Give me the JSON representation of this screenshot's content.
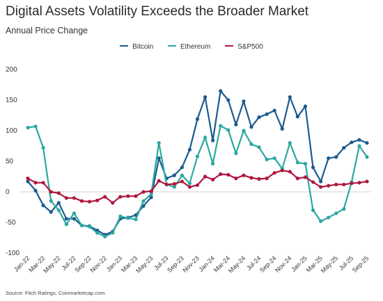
{
  "title": "Digital Assets Volatility Exceeds the Broader Market",
  "subtitle": "Annual Price Change",
  "source": "Source: Fitch Ratings, Coinmarketcap.com.",
  "chart_data": {
    "type": "line",
    "x": [
      "Jan-22",
      "Feb-22",
      "Mar-22",
      "Apr-22",
      "May-22",
      "Jun-22",
      "Jul-22",
      "Aug-22",
      "Sep-22",
      "Oct-22",
      "Nov-22",
      "Dec-22",
      "Jan-23",
      "Feb-23",
      "Mar-23",
      "Apr-23",
      "May-23",
      "Jun-23",
      "Jul-23",
      "Aug-23",
      "Sep-23",
      "Oct-23",
      "Nov-23",
      "Dec-23",
      "Jan-24",
      "Feb-24",
      "Mar-24",
      "Apr-24",
      "May-24",
      "Jun-24",
      "Jul-24",
      "Aug-24",
      "Sep-24",
      "Oct-24",
      "Nov-24",
      "Dec-24",
      "Jan-25",
      "Feb-25",
      "Mar-25",
      "Apr-25",
      "May-25",
      "Jun-25",
      "Jul-25",
      "Aug-25",
      "Sep-25"
    ],
    "x_tick_labels": [
      "Jan-22",
      "Mar-22",
      "May-22",
      "Jul-22",
      "Sep-22",
      "Nov-22",
      "Jan-23",
      "Mar-23",
      "May-23",
      "Jul-23",
      "Sep-23",
      "Nov-23",
      "Jan-24",
      "Mar-24",
      "May-24",
      "Jul-24",
      "Sep-24",
      "Nov-24",
      "Jan-25",
      "Mar-25",
      "May-25",
      "Jul-25",
      "Sep-25"
    ],
    "y_tick_labels": [
      "200",
      "150",
      "100",
      "50",
      "0",
      "-50",
      "-100"
    ],
    "y_ticks": [
      200,
      150,
      100,
      50,
      0,
      -50,
      -100
    ],
    "ylim": [
      -100,
      200
    ],
    "grid": false,
    "legend_position": "top-center",
    "series": [
      {
        "name": "Bitcoin",
        "color": "#1d5a8e",
        "values": [
          17,
          2,
          -22,
          -33,
          -18,
          -44,
          -44,
          -55,
          -56,
          -63,
          -70,
          -65,
          -44,
          -42,
          -38,
          -23,
          -9,
          55,
          22,
          27,
          40,
          69,
          119,
          155,
          84,
          165,
          150,
          110,
          148,
          106,
          122,
          127,
          133,
          103,
          155,
          123,
          140,
          40,
          17,
          55,
          57,
          72,
          81,
          85,
          80
        ]
      },
      {
        "name": "Ethereum",
        "color": "#2aa8a0",
        "values": [
          105,
          107,
          72,
          -15,
          -30,
          -53,
          -35,
          -55,
          -57,
          -67,
          -73,
          -67,
          -40,
          -43,
          -45,
          -15,
          -4,
          80,
          12,
          8,
          27,
          14,
          58,
          89,
          46,
          108,
          101,
          63,
          100,
          78,
          73,
          53,
          55,
          38,
          80,
          48,
          46,
          -30,
          -48,
          -42,
          -35,
          -28,
          16,
          75,
          57
        ]
      },
      {
        "name": "S&P500",
        "color": "#b0163e",
        "values": [
          22,
          15,
          15,
          0,
          -2,
          -10,
          -10,
          -15,
          -16,
          -14,
          -8,
          -18,
          -8,
          -7,
          -7,
          0,
          1,
          18,
          12,
          13,
          17,
          8,
          11,
          25,
          20,
          29,
          28,
          22,
          27,
          23,
          21,
          22,
          31,
          35,
          33,
          22,
          24,
          16,
          8,
          10,
          12,
          12,
          14,
          15,
          17
        ]
      }
    ]
  }
}
